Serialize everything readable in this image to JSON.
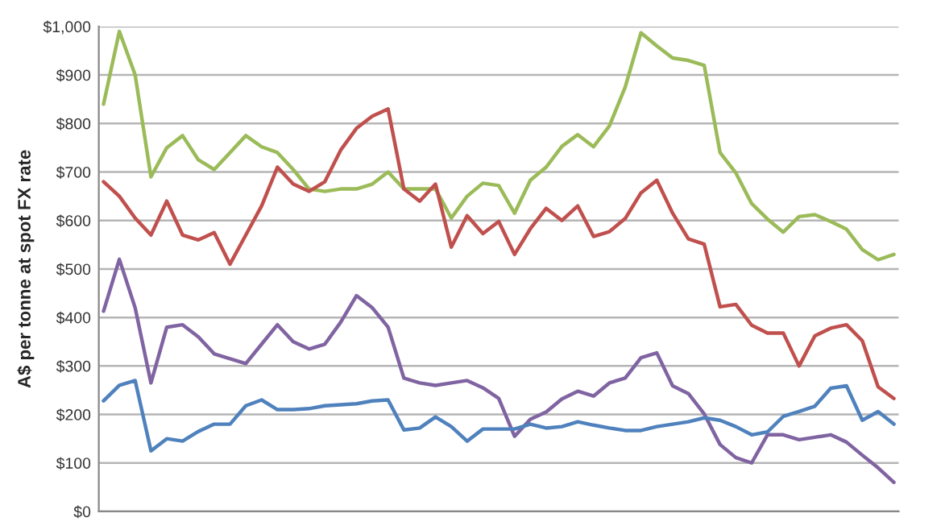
{
  "chart_data": {
    "type": "line",
    "ylabel": "A$ per tonne at spot FX rate",
    "categories": [
      null,
      null,
      null,
      null,
      null,
      null,
      null,
      null,
      null,
      null,
      null,
      null,
      null,
      null,
      null,
      null,
      null,
      null,
      null,
      null,
      null,
      null,
      null,
      null,
      null,
      null,
      null,
      null,
      null,
      null,
      null,
      null,
      null,
      null,
      null,
      null,
      null,
      null,
      null,
      null,
      null,
      null,
      null,
      null,
      null,
      null,
      null,
      null,
      null,
      null,
      null
    ],
    "series": [
      {
        "color": "#9bbb59",
        "values": [
          840,
          990,
          900,
          690,
          750,
          775,
          725,
          705,
          740,
          775,
          752,
          740,
          705,
          665,
          660,
          665,
          665,
          675,
          700,
          665,
          665,
          665,
          605,
          650,
          677,
          672,
          615,
          683,
          710,
          753,
          777,
          752,
          795,
          875,
          987,
          960,
          935,
          930,
          920,
          740,
          698,
          635,
          603,
          576,
          608,
          612,
          598,
          582,
          540,
          519,
          530
        ]
      },
      {
        "color": "#c0504d",
        "values": [
          680,
          650,
          605,
          570,
          640,
          570,
          560,
          575,
          510,
          570,
          630,
          710,
          675,
          660,
          680,
          745,
          790,
          815,
          830,
          665,
          640,
          675,
          545,
          610,
          573,
          598,
          530,
          583,
          625,
          600,
          630,
          567,
          577,
          604,
          657,
          683,
          615,
          562,
          551,
          422,
          427,
          384,
          368,
          368,
          300,
          362,
          378,
          385,
          352,
          257,
          233
        ]
      },
      {
        "color": "#8064a2",
        "values": [
          413,
          520,
          420,
          265,
          380,
          385,
          360,
          325,
          315,
          305,
          345,
          385,
          350,
          335,
          345,
          390,
          445,
          420,
          380,
          275,
          265,
          260,
          265,
          270,
          255,
          233,
          155,
          190,
          205,
          232,
          248,
          238,
          265,
          275,
          317,
          327,
          259,
          243,
          201,
          138,
          111,
          100,
          158,
          158,
          148,
          153,
          158,
          143,
          116,
          90,
          60
        ]
      },
      {
        "color": "#4f81bd",
        "values": [
          228,
          260,
          270,
          125,
          150,
          145,
          165,
          180,
          180,
          218,
          230,
          210,
          210,
          212,
          218,
          220,
          222,
          228,
          230,
          168,
          172,
          195,
          175,
          145,
          170,
          170,
          170,
          180,
          172,
          175,
          185,
          178,
          172,
          167,
          167,
          175,
          180,
          185,
          193,
          188,
          175,
          158,
          164,
          196,
          206,
          217,
          254,
          259,
          188,
          206,
          180
        ]
      }
    ],
    "ylim": [
      0,
      1000
    ],
    "yticks": [
      {
        "value": 0,
        "label": "$0"
      },
      {
        "value": 100,
        "label": "$100"
      },
      {
        "value": 200,
        "label": "$200"
      },
      {
        "value": 300,
        "label": "$300"
      },
      {
        "value": 400,
        "label": "$400"
      },
      {
        "value": 500,
        "label": "$500"
      },
      {
        "value": 600,
        "label": "$600"
      },
      {
        "value": 700,
        "label": "$700"
      },
      {
        "value": 800,
        "label": "$800"
      },
      {
        "value": 900,
        "label": "$900"
      },
      {
        "value": 1000,
        "label": "$1,000"
      }
    ],
    "grid": "y",
    "tick_labels": "y",
    "marker": "none",
    "line_style": "solid"
  }
}
